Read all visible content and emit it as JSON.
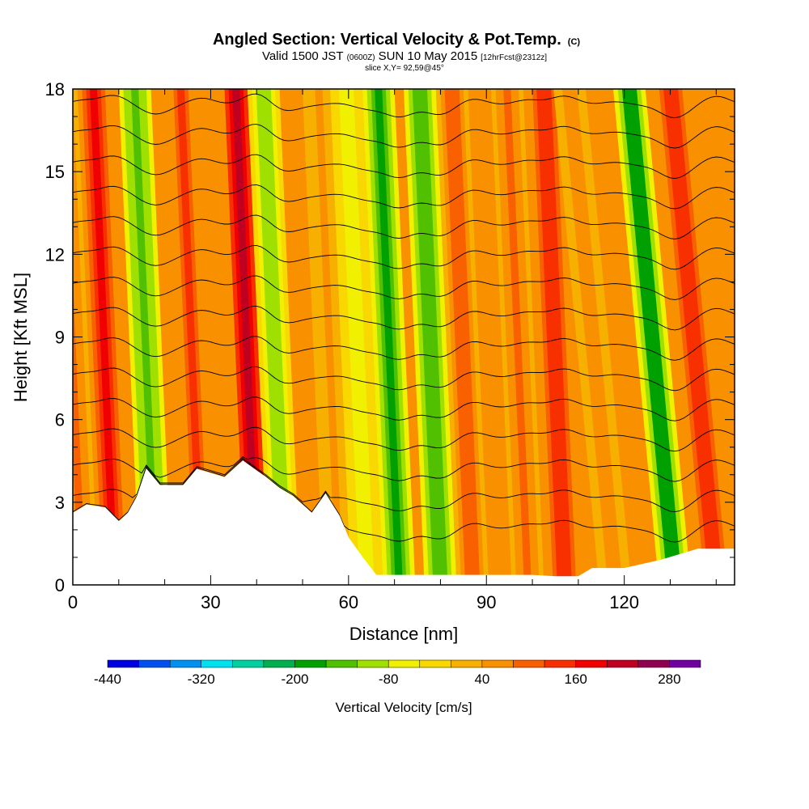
{
  "chart_data": {
    "type": "heatmap",
    "title": "Angled Section: Vertical Velocity & Pot.Temp.",
    "title_unit": "(C)",
    "subtitle_parts": [
      "Valid 1500 JST",
      "(0600Z)",
      "SUN 10 May 2015",
      "[12hrFcst@2312z]"
    ],
    "subtitle2": "slice X,Y= 92,59@45°",
    "xlabel": "Distance [nm]",
    "ylabel": "Height [Kft MSL]",
    "xlim": [
      0,
      144
    ],
    "ylim": [
      0,
      18
    ],
    "x_ticks": [
      0,
      30,
      60,
      90,
      120
    ],
    "y_ticks": [
      0,
      3,
      6,
      9,
      12,
      15,
      18
    ],
    "colorbar": {
      "label": "Vertical Velocity [cm/s]",
      "ticks": [
        -440,
        -320,
        -200,
        -80,
        40,
        160,
        280
      ],
      "range": [
        -440,
        320
      ],
      "colors": [
        "#0000e0",
        "#0050f0",
        "#0090f0",
        "#00e0f0",
        "#00d0a0",
        "#00b050",
        "#00a000",
        "#50c000",
        "#a0e000",
        "#f0f000",
        "#f8d800",
        "#f8b000",
        "#f89000",
        "#f86000",
        "#f83000",
        "#f00000",
        "#c00020",
        "#900050",
        "#7000a0"
      ]
    },
    "terrain": [
      [
        0,
        2.6
      ],
      [
        3,
        2.9
      ],
      [
        7,
        2.8
      ],
      [
        10,
        2.3
      ],
      [
        12,
        2.6
      ],
      [
        14,
        3.2
      ],
      [
        16,
        4.2
      ],
      [
        19,
        3.6
      ],
      [
        24,
        3.6
      ],
      [
        27,
        4.2
      ],
      [
        33,
        3.9
      ],
      [
        37,
        4.5
      ],
      [
        42,
        3.9
      ],
      [
        45,
        3.5
      ],
      [
        48,
        3.2
      ],
      [
        52,
        2.6
      ],
      [
        55,
        3.3
      ],
      [
        58,
        2.5
      ],
      [
        60,
        1.7
      ],
      [
        63,
        1.0
      ],
      [
        66,
        0.35
      ],
      [
        90,
        0.35
      ],
      [
        100,
        0.35
      ],
      [
        105,
        0.3
      ],
      [
        110,
        0.3
      ],
      [
        113,
        0.6
      ],
      [
        120,
        0.6
      ],
      [
        128,
        0.9
      ],
      [
        136,
        1.3
      ],
      [
        144,
        1.3
      ]
    ],
    "velocity_bands": [
      {
        "x": 2,
        "value": 80
      },
      {
        "x": 9,
        "value": 160
      },
      {
        "x": 18,
        "value": -140
      },
      {
        "x": 28,
        "value": 120
      },
      {
        "x": 40,
        "value": 200
      },
      {
        "x": 46,
        "value": -100
      },
      {
        "x": 58,
        "value": 40
      },
      {
        "x": 64,
        "value": -60
      },
      {
        "x": 71,
        "value": -180
      },
      {
        "x": 80,
        "value": -150
      },
      {
        "x": 87,
        "value": 110
      },
      {
        "x": 99,
        "value": 90
      },
      {
        "x": 107,
        "value": 150
      },
      {
        "x": 118,
        "value": 60
      },
      {
        "x": 131,
        "value": -200
      },
      {
        "x": 140,
        "value": 150
      }
    ]
  }
}
